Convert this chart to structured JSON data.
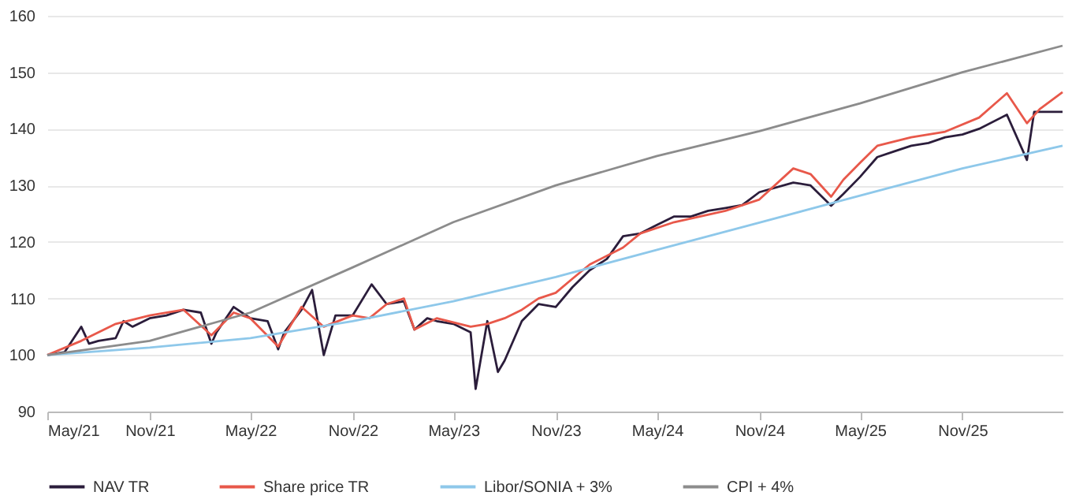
{
  "chart_data": {
    "type": "line",
    "xlim": [
      "2021-05-01",
      "2026-04-30"
    ],
    "xticks": [
      {
        "value": "2021-05-01",
        "label": "May/21"
      },
      {
        "value": "2021-11-01",
        "label": "Nov/21"
      },
      {
        "value": "2022-05-01",
        "label": "May/22"
      },
      {
        "value": "2022-11-01",
        "label": "Nov/22"
      },
      {
        "value": "2023-05-01",
        "label": "May/23"
      },
      {
        "value": "2023-11-01",
        "label": "Nov/23"
      },
      {
        "value": "2024-05-01",
        "label": "May/24"
      },
      {
        "value": "2024-11-01",
        "label": "Nov/24"
      },
      {
        "value": "2025-05-01",
        "label": "May/25"
      },
      {
        "value": "2025-11-01",
        "label": "Nov/25"
      }
    ],
    "ylim": [
      90,
      160
    ],
    "yticks": [
      90,
      100,
      110,
      120,
      130,
      140,
      150,
      160
    ],
    "grid": "y",
    "legend": "bottom",
    "series": [
      {
        "name": "NAV TR",
        "color": "#2b1d3b",
        "x": [
          "2021-05-01",
          "2021-06-01",
          "2021-07-01",
          "2021-07-15",
          "2021-08-01",
          "2021-09-01",
          "2021-09-15",
          "2021-10-01",
          "2021-11-01",
          "2021-12-01",
          "2022-01-01",
          "2022-02-01",
          "2022-02-20",
          "2022-03-01",
          "2022-04-01",
          "2022-05-01",
          "2022-06-01",
          "2022-06-20",
          "2022-07-01",
          "2022-08-01",
          "2022-08-20",
          "2022-09-10",
          "2022-10-01",
          "2022-11-01",
          "2022-12-05",
          "2023-01-01",
          "2023-02-01",
          "2023-02-20",
          "2023-03-15",
          "2023-04-01",
          "2023-05-01",
          "2023-06-01",
          "2023-06-10",
          "2023-07-01",
          "2023-07-20",
          "2023-08-01",
          "2023-09-01",
          "2023-10-01",
          "2023-11-01",
          "2023-12-01",
          "2024-01-01",
          "2024-02-01",
          "2024-03-01",
          "2024-04-01",
          "2024-05-01",
          "2024-06-01",
          "2024-07-01",
          "2024-08-01",
          "2024-09-01",
          "2024-10-01",
          "2024-11-01",
          "2025-01-01",
          "2025-02-01",
          "2025-03-10",
          "2025-04-01",
          "2025-05-01",
          "2025-06-01",
          "2025-07-01",
          "2025-08-01",
          "2025-09-01",
          "2025-10-01",
          "2025-11-01",
          "2025-12-01",
          "2026-01-20",
          "2026-02-25",
          "2026-03-10",
          "2026-04-30"
        ],
        "values": [
          100,
          100.5,
          105,
          102,
          102.5,
          103,
          106,
          105,
          106.5,
          107,
          108,
          107.5,
          102,
          104,
          108.5,
          106.5,
          106,
          101,
          104,
          108,
          111.5,
          100,
          107,
          107,
          112.5,
          109,
          109.5,
          104.5,
          106.5,
          106,
          105.5,
          104,
          94,
          106,
          97,
          99,
          106,
          109,
          108.5,
          112,
          115,
          117,
          121,
          121.5,
          123,
          124.5,
          124.5,
          125.5,
          126,
          126.5,
          128.8,
          130.5,
          130,
          126.4,
          128.5,
          131.5,
          135,
          136,
          137,
          137.5,
          138.5,
          139,
          140,
          142.5,
          134.5,
          143,
          143
        ]
      },
      {
        "name": "Share price TR",
        "color": "#e8584a",
        "x": [
          "2021-05-01",
          "2021-07-01",
          "2021-09-01",
          "2021-11-01",
          "2022-01-01",
          "2022-02-20",
          "2022-04-01",
          "2022-05-01",
          "2022-06-20",
          "2022-08-01",
          "2022-09-10",
          "2022-11-01",
          "2022-12-01",
          "2023-01-01",
          "2023-02-01",
          "2023-02-20",
          "2023-04-01",
          "2023-06-01",
          "2023-07-01",
          "2023-08-01",
          "2023-09-01",
          "2023-10-01",
          "2023-11-01",
          "2023-12-01",
          "2024-01-01",
          "2024-03-01",
          "2024-04-01",
          "2024-06-01",
          "2024-09-01",
          "2024-11-01",
          "2025-01-01",
          "2025-02-01",
          "2025-03-10",
          "2025-04-01",
          "2025-05-01",
          "2025-06-01",
          "2025-08-01",
          "2025-10-01",
          "2025-12-01",
          "2026-01-20",
          "2026-02-25",
          "2026-03-20",
          "2026-04-30"
        ],
        "values": [
          100,
          102.5,
          105.5,
          107,
          108,
          103.5,
          107.5,
          106.5,
          101.5,
          108.5,
          105,
          107,
          106.5,
          109,
          110,
          104.5,
          106.5,
          105,
          105.5,
          106.5,
          108,
          110,
          111,
          113.5,
          116,
          119,
          121.5,
          123.5,
          125.5,
          127.5,
          133,
          132,
          128,
          131,
          134,
          137,
          138.5,
          139.5,
          142,
          146.3,
          141,
          143.5,
          146.5
        ]
      },
      {
        "name": "Libor/SONIA + 3%",
        "color": "#8ec8ea",
        "x": [
          "2021-05-01",
          "2021-11-01",
          "2022-05-01",
          "2022-11-01",
          "2023-05-01",
          "2023-11-01",
          "2024-05-01",
          "2024-11-01",
          "2025-05-01",
          "2025-11-01",
          "2026-04-30"
        ],
        "values": [
          100,
          101.3,
          103,
          106,
          109.5,
          113.8,
          118.6,
          123.4,
          128.2,
          133,
          137
        ]
      },
      {
        "name": "CPI + 4%",
        "color": "#8c8c8c",
        "x": [
          "2021-05-01",
          "2021-11-01",
          "2022-05-01",
          "2022-11-01",
          "2023-05-01",
          "2023-11-01",
          "2024-05-01",
          "2024-11-01",
          "2025-05-01",
          "2025-11-01",
          "2026-04-30"
        ],
        "values": [
          100,
          102.5,
          107.5,
          115.5,
          123.5,
          130,
          135.2,
          139.6,
          144.5,
          150,
          154.7
        ]
      }
    ]
  }
}
